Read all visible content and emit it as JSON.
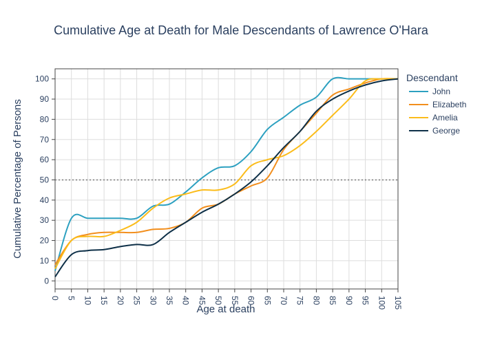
{
  "chart_data": {
    "type": "line",
    "title": "Cumulative Age at Death for Male Descendants of Lawrence O'Hara",
    "xlabel": "Age at death",
    "ylabel": "Cumulative Percentage of Persons",
    "xlim": [
      0,
      105
    ],
    "ylim": [
      -4,
      105
    ],
    "xticks": [
      0,
      5,
      10,
      15,
      20,
      25,
      30,
      35,
      40,
      45,
      50,
      55,
      60,
      65,
      70,
      75,
      80,
      85,
      90,
      95,
      100,
      105
    ],
    "yticks": [
      0,
      10,
      20,
      30,
      40,
      50,
      60,
      70,
      80,
      90,
      100
    ],
    "grid": true,
    "reference_line": {
      "y": 50,
      "style": "dotted",
      "color": "#777777"
    },
    "legend": {
      "title": "Descendant",
      "position": "right"
    },
    "x": [
      0,
      5,
      10,
      15,
      20,
      25,
      30,
      35,
      40,
      45,
      50,
      55,
      60,
      65,
      70,
      75,
      80,
      85,
      90,
      95,
      100,
      105
    ],
    "series": [
      {
        "name": "John",
        "color": "#2ca0c0",
        "values": [
          5,
          31,
          31,
          31,
          31,
          31,
          37,
          38,
          44,
          51,
          56,
          57,
          64,
          75,
          81,
          87,
          91,
          100,
          100,
          100,
          100,
          100
        ]
      },
      {
        "name": "Elizabeth",
        "color": "#f28e1c",
        "values": [
          8,
          20,
          23,
          24,
          24,
          24,
          25.5,
          26,
          29,
          36,
          38,
          43,
          47,
          51,
          65,
          74,
          83,
          92,
          95,
          98,
          100,
          100
        ]
      },
      {
        "name": "Amelia",
        "color": "#fbbc1a",
        "values": [
          6,
          20,
          22,
          22,
          25,
          29,
          36,
          41,
          43,
          45,
          45,
          48,
          57,
          60,
          62,
          67,
          74,
          82,
          90,
          99,
          100,
          100
        ]
      },
      {
        "name": "George",
        "color": "#0d2f47",
        "values": [
          2,
          13,
          15,
          15.5,
          17,
          18,
          18,
          24,
          29,
          34,
          38,
          43,
          49,
          57,
          66,
          74,
          84,
          90,
          94,
          97,
          99,
          100
        ]
      }
    ]
  }
}
